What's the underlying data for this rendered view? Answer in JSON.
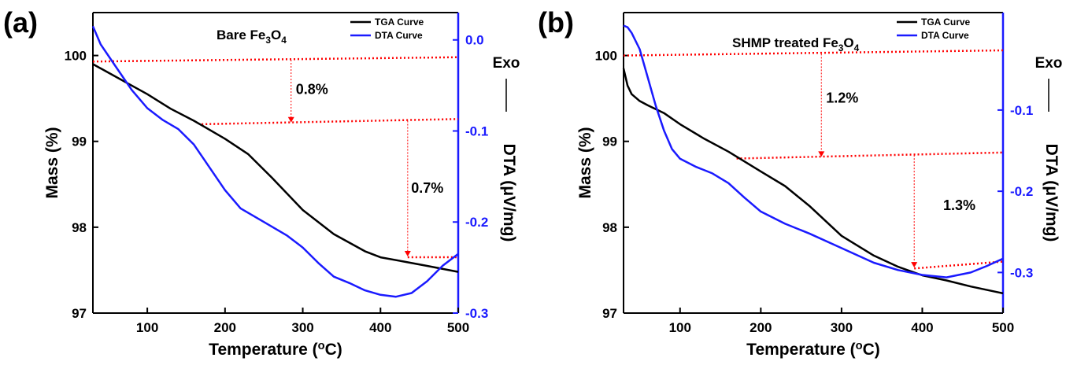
{
  "chart_data": [
    {
      "panel_label": "(a)",
      "type": "line",
      "title": "Bare Fe3O4",
      "xlabel": "Temperature (°C)",
      "ylabel_left": "Mass (%)",
      "ylabel_right": "DTA (μV/mg)",
      "exo_label": "Exo",
      "xlim": [
        30,
        500
      ],
      "ylim_left": [
        97,
        100.5
      ],
      "ylim_right": [
        -0.3,
        0.03
      ],
      "x_ticks": [
        100,
        200,
        300,
        400,
        500
      ],
      "y_left_ticks": [
        97,
        98,
        99,
        100
      ],
      "y_right_ticks": [
        0.0,
        -0.1,
        -0.2,
        -0.3
      ],
      "y_right_tick_labels": [
        "0.0",
        "-0.1",
        "-0.2",
        "-0.3"
      ],
      "legend": [
        "TGA Curve",
        "DTA Curve"
      ],
      "legend_position": "top-right",
      "series": [
        {
          "name": "TGA Curve",
          "color": "#000000",
          "axis": "left",
          "x": [
            30,
            50,
            80,
            100,
            130,
            160,
            200,
            230,
            260,
            300,
            340,
            380,
            400,
            430,
            460,
            500
          ],
          "y": [
            99.9,
            99.8,
            99.65,
            99.55,
            99.38,
            99.24,
            99.03,
            98.85,
            98.58,
            98.2,
            97.92,
            97.72,
            97.65,
            97.6,
            97.55,
            97.48
          ]
        },
        {
          "name": "DTA Curve",
          "color": "#1a1aff",
          "axis": "right",
          "x": [
            30,
            40,
            60,
            80,
            100,
            120,
            140,
            160,
            180,
            200,
            220,
            250,
            280,
            300,
            320,
            340,
            360,
            380,
            400,
            420,
            440,
            460,
            480,
            500
          ],
          "y": [
            0.015,
            -0.005,
            -0.03,
            -0.055,
            -0.075,
            -0.088,
            -0.098,
            -0.115,
            -0.14,
            -0.165,
            -0.185,
            -0.2,
            -0.215,
            -0.228,
            -0.245,
            -0.26,
            -0.267,
            -0.275,
            -0.28,
            -0.282,
            -0.278,
            -0.265,
            -0.248,
            -0.235
          ]
        }
      ],
      "annotations": [
        {
          "text": "0.8%",
          "x": 285,
          "y": 99.55
        },
        {
          "text": "0.7%",
          "x": 475,
          "y": 98.4
        }
      ],
      "guide_lines": [
        {
          "x1": 30,
          "y1": 99.93,
          "x2": 500,
          "y2": 99.98
        },
        {
          "x1": 170,
          "y1": 99.2,
          "x2": 500,
          "y2": 99.26
        },
        {
          "x1": 435,
          "y1": 97.65,
          "x2": 500,
          "y2": 97.65
        }
      ],
      "guide_arrows": [
        {
          "x": 285,
          "y1": 99.95,
          "y2": 99.22
        },
        {
          "x": 435,
          "y1": 99.24,
          "y2": 97.66
        }
      ]
    },
    {
      "panel_label": "(b)",
      "type": "line",
      "title": "SHMP treated Fe3O4",
      "xlabel": "Temperature (°C)",
      "ylabel_left": "Mass (%)",
      "ylabel_right": "DTA (μV/mg)",
      "exo_label": "Exo",
      "xlim": [
        30,
        500
      ],
      "ylim_left": [
        97,
        100.5
      ],
      "ylim_right": [
        -0.35,
        0.02
      ],
      "x_ticks": [
        100,
        200,
        300,
        400,
        500
      ],
      "y_left_ticks": [
        97,
        98,
        99,
        100
      ],
      "y_right_ticks": [
        -0.1,
        -0.2,
        -0.3
      ],
      "y_right_tick_labels": [
        "-0.1",
        "-0.2",
        "-0.3"
      ],
      "legend": [
        "TGA Curve",
        "DTA Curve"
      ],
      "legend_position": "top-right",
      "series": [
        {
          "name": "TGA Curve",
          "color": "#000000",
          "axis": "left",
          "x": [
            30,
            35,
            40,
            50,
            60,
            80,
            100,
            130,
            160,
            200,
            230,
            260,
            300,
            340,
            370,
            400,
            430,
            460,
            500
          ],
          "y": [
            99.85,
            99.65,
            99.55,
            99.47,
            99.42,
            99.33,
            99.2,
            99.03,
            98.88,
            98.65,
            98.48,
            98.25,
            97.9,
            97.67,
            97.54,
            97.44,
            97.38,
            97.31,
            97.23
          ]
        },
        {
          "name": "DTA Curve",
          "color": "#1a1aff",
          "axis": "right",
          "x": [
            30,
            35,
            40,
            50,
            60,
            70,
            80,
            90,
            100,
            120,
            140,
            160,
            180,
            200,
            230,
            260,
            300,
            340,
            370,
            400,
            430,
            460,
            480,
            500
          ],
          "y": [
            0.004,
            0.002,
            -0.005,
            -0.025,
            -0.06,
            -0.095,
            -0.125,
            -0.148,
            -0.16,
            -0.17,
            -0.178,
            -0.19,
            -0.208,
            -0.225,
            -0.24,
            -0.252,
            -0.27,
            -0.288,
            -0.297,
            -0.303,
            -0.306,
            -0.3,
            -0.292,
            -0.283
          ]
        }
      ],
      "annotations": [
        {
          "text": "1.2%",
          "x": 275,
          "y": 99.45
        },
        {
          "text": "1.3%",
          "x": 420,
          "y": 98.2
        }
      ],
      "guide_lines": [
        {
          "x1": 30,
          "y1": 100.0,
          "x2": 500,
          "y2": 100.06
        },
        {
          "x1": 170,
          "y1": 98.8,
          "x2": 500,
          "y2": 98.87
        },
        {
          "x1": 390,
          "y1": 97.52,
          "x2": 500,
          "y2": 97.6
        }
      ],
      "guide_arrows": [
        {
          "x": 275,
          "y1": 100.02,
          "y2": 98.82
        },
        {
          "x": 390,
          "y1": 98.84,
          "y2": 97.53
        }
      ]
    }
  ]
}
